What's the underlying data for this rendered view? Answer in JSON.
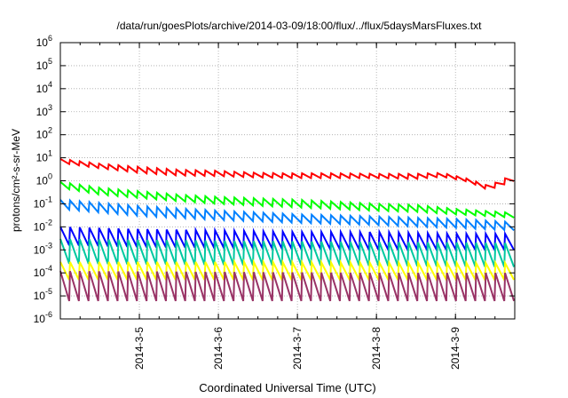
{
  "chart_data": {
    "type": "line",
    "title": "/data/run/goesPlots/archive/2014-03-09/18:00/flux/../flux/5daysMarsFluxes.txt",
    "xlabel": "Coordinated Universal Time (UTC)",
    "ylabel": "protons/cm²-s-sr-MeV",
    "x_range": [
      "2014-03-04T00:00",
      "2014-03-09T18:00"
    ],
    "x_ticks": [
      "2014-3-5",
      "2014-3-6",
      "2014-3-7",
      "2014-3-8",
      "2014-3-9"
    ],
    "y_scale": "log",
    "ylim": [
      1e-06,
      1000000.0
    ],
    "y_ticks": [
      -6,
      -5,
      -4,
      -3,
      -2,
      -1,
      0,
      1,
      2,
      3,
      4,
      5,
      6
    ],
    "grid": true,
    "legend": "none",
    "sawtooth_cycles": 47,
    "series": [
      {
        "color": "#ff0000",
        "x": [
          "2014-03-04T00:00",
          "2014-03-04T12:00",
          "2014-03-05T00:00",
          "2014-03-05T12:00",
          "2014-03-06T00:00",
          "2014-03-06T12:00",
          "2014-03-07T00:00",
          "2014-03-07T12:00",
          "2014-03-08T00:00",
          "2014-03-08T12:00",
          "2014-03-08T20:00",
          "2014-03-09T04:00",
          "2014-03-09T10:00",
          "2014-03-09T18:00"
        ],
        "y_high": [
          9,
          5.5,
          4,
          3,
          2.7,
          2.2,
          2.1,
          2.1,
          2.0,
          2.0,
          2.2,
          1.2,
          0.6,
          2.0
        ],
        "y_low": [
          6,
          3.5,
          2.2,
          1.7,
          1.6,
          1.4,
          1.3,
          1.3,
          1.3,
          1.2,
          1.5,
          0.9,
          0.4,
          1.0
        ]
      },
      {
        "color": "#00ff00",
        "x": [
          "2014-03-04T00:00",
          "2014-03-04T12:00",
          "2014-03-05T00:00",
          "2014-03-05T12:00",
          "2014-03-06T00:00",
          "2014-03-07T00:00",
          "2014-03-08T00:00",
          "2014-03-08T12:00",
          "2014-03-09T00:00",
          "2014-03-09T18:00"
        ],
        "y_high": [
          0.9,
          0.5,
          0.35,
          0.25,
          0.2,
          0.15,
          0.1,
          0.09,
          0.06,
          0.04
        ],
        "y_low": [
          0.5,
          0.25,
          0.18,
          0.13,
          0.1,
          0.07,
          0.05,
          0.045,
          0.035,
          0.025
        ]
      },
      {
        "color": "#0080ff",
        "x": [
          "2014-03-04T00:00",
          "2014-03-05T00:00",
          "2014-03-06T00:00",
          "2014-03-07T00:00",
          "2014-03-08T00:00",
          "2014-03-09T00:00",
          "2014-03-09T18:00"
        ],
        "y_high": [
          0.15,
          0.08,
          0.05,
          0.035,
          0.028,
          0.022,
          0.016
        ],
        "y_low": [
          0.06,
          0.03,
          0.02,
          0.015,
          0.012,
          0.009,
          0.007
        ]
      },
      {
        "color": "#0000ff",
        "x": [
          "2014-03-04T00:00",
          "2014-03-05T00:00",
          "2014-03-06T00:00",
          "2014-03-07T00:00",
          "2014-03-08T00:00",
          "2014-03-09T00:00",
          "2014-03-09T18:00"
        ],
        "y_high": [
          0.01,
          0.008,
          0.007,
          0.006,
          0.006,
          0.005,
          0.005
        ],
        "y_low": [
          0.0016,
          0.0013,
          0.0012,
          0.0011,
          0.001,
          0.001,
          0.001
        ]
      },
      {
        "color": "#00c8a0",
        "x": [
          "2014-03-04T00:00",
          "2014-03-06T00:00",
          "2014-03-08T00:00",
          "2014-03-09T18:00"
        ],
        "y_high": [
          0.003,
          0.0025,
          0.0022,
          0.002
        ],
        "y_low": [
          0.00025,
          0.00022,
          0.0002,
          0.00018
        ]
      },
      {
        "color": "#ffff00",
        "x": [
          "2014-03-04T00:00",
          "2014-03-06T00:00",
          "2014-03-08T00:00",
          "2014-03-09T18:00"
        ],
        "y_high": [
          0.0003,
          0.0003,
          0.00028,
          0.00027
        ],
        "y_low": [
          5e-05,
          5e-05,
          5e-05,
          5e-05
        ]
      },
      {
        "color": "#993366",
        "x": [
          "2014-03-04T00:00",
          "2014-03-06T00:00",
          "2014-03-08T00:00",
          "2014-03-09T18:00"
        ],
        "y_high": [
          0.00012,
          0.00011,
          0.0001,
          0.0001
        ],
        "y_low": [
          6e-06,
          6e-06,
          6e-06,
          6e-06
        ]
      }
    ]
  }
}
